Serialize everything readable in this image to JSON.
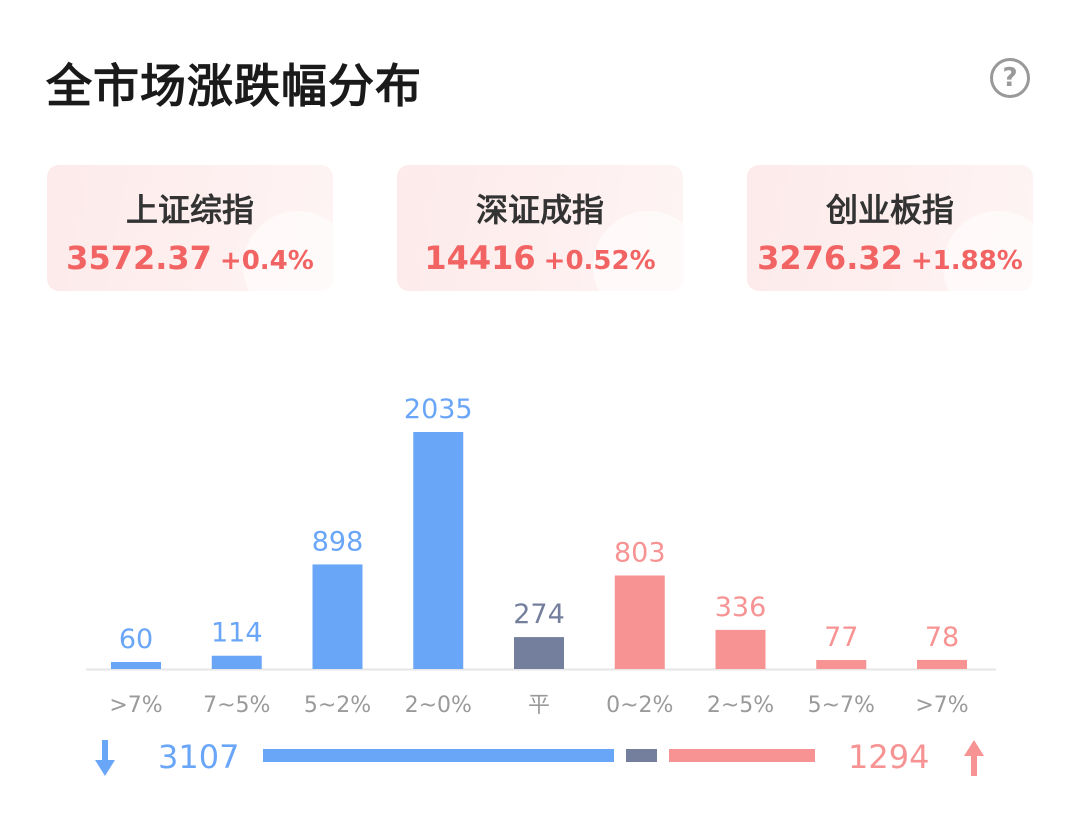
{
  "header": {
    "title": "全市场涨跌幅分布",
    "help_symbol": "?"
  },
  "indices": [
    {
      "name": "上证综指",
      "price": "3572.37",
      "change": "+0.4%"
    },
    {
      "name": "深证成指",
      "price": "14416",
      "change": "+0.52%"
    },
    {
      "name": "创业板指",
      "price": "3276.32",
      "change": "+1.88%"
    }
  ],
  "colors": {
    "down": "#6aa6f8",
    "flat": "#737f9c",
    "up": "#f79393",
    "text_up": "#f26464"
  },
  "chart_data": {
    "type": "bar",
    "categories": [
      ">7%",
      "7~5%",
      "5~2%",
      "2~0%",
      "平",
      "0~2%",
      "2~5%",
      "5~7%",
      ">7%"
    ],
    "values": [
      60,
      114,
      898,
      2035,
      274,
      803,
      336,
      77,
      78
    ],
    "groups": [
      "down",
      "down",
      "down",
      "down",
      "flat",
      "up",
      "up",
      "up",
      "up"
    ],
    "ylim": [
      0,
      2035
    ]
  },
  "summary": {
    "down_total": "3107",
    "up_total": "1294",
    "down": 3107,
    "flat": 274,
    "up": 1294
  }
}
